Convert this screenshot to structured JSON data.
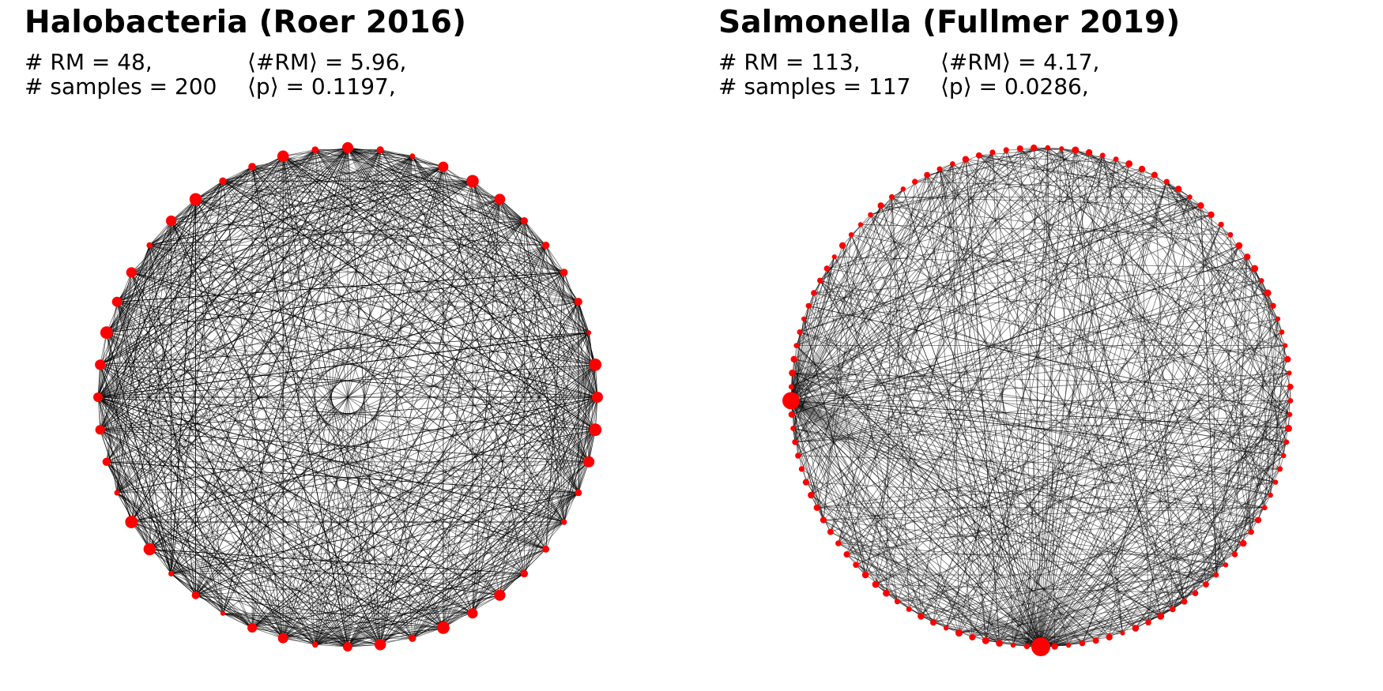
{
  "node_color": "#ff0000",
  "edge_color": "#000000",
  "panels": [
    {
      "title": "Halobacteria (Roer 2016)",
      "stat_rm": "# RM = 48,",
      "stat_samples": "# samples = 200",
      "stat_mean_rm": "⟨#RM⟩ = 5.96,",
      "stat_mean_p": "⟨p⟩ = 0.1197,",
      "network": {
        "node_count": 48,
        "edge_count": 900,
        "seed": 11
      }
    },
    {
      "title": "Salmonella (Fullmer 2019)",
      "stat_rm": "# RM = 113,",
      "stat_samples": "# samples = 117",
      "stat_mean_rm": "⟨#RM⟩ = 4.17,",
      "stat_mean_p": "⟨p⟩ = 0.0286,",
      "network": {
        "node_count": 113,
        "edge_count": 520,
        "seed": 23
      }
    }
  ]
}
